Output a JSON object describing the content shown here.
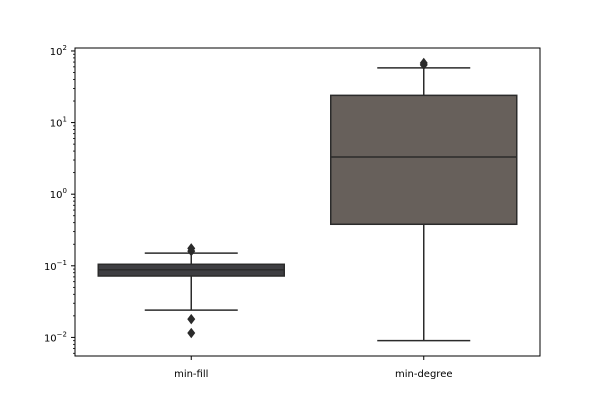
{
  "chart_data": {
    "type": "box",
    "yscale": "log",
    "ylim": [
      0.0055,
      110
    ],
    "yticks": [
      {
        "value": 0.01,
        "base": "10",
        "exp": "−2"
      },
      {
        "value": 0.1,
        "base": "10",
        "exp": "−1"
      },
      {
        "value": 1,
        "base": "10",
        "exp": "0"
      },
      {
        "value": 10,
        "base": "10",
        "exp": "1"
      },
      {
        "value": 100,
        "base": "10",
        "exp": "2"
      }
    ],
    "categories": [
      "min-fill",
      "min-degree"
    ],
    "boxes": [
      {
        "name": "min-fill",
        "whisker_low": 0.024,
        "q1": 0.072,
        "median": 0.088,
        "q3": 0.105,
        "whisker_high": 0.15,
        "outliers": [
          0.0115,
          0.018,
          0.16,
          0.175
        ],
        "color": "#3e3e42"
      },
      {
        "name": "min-degree",
        "whisker_low": 0.009,
        "q1": 0.38,
        "median": 3.3,
        "q3": 24,
        "whisker_high": 58,
        "outliers": [
          64,
          68
        ],
        "color": "#67605b"
      }
    ],
    "edge_color": "#2b2b2b",
    "grid": false
  }
}
